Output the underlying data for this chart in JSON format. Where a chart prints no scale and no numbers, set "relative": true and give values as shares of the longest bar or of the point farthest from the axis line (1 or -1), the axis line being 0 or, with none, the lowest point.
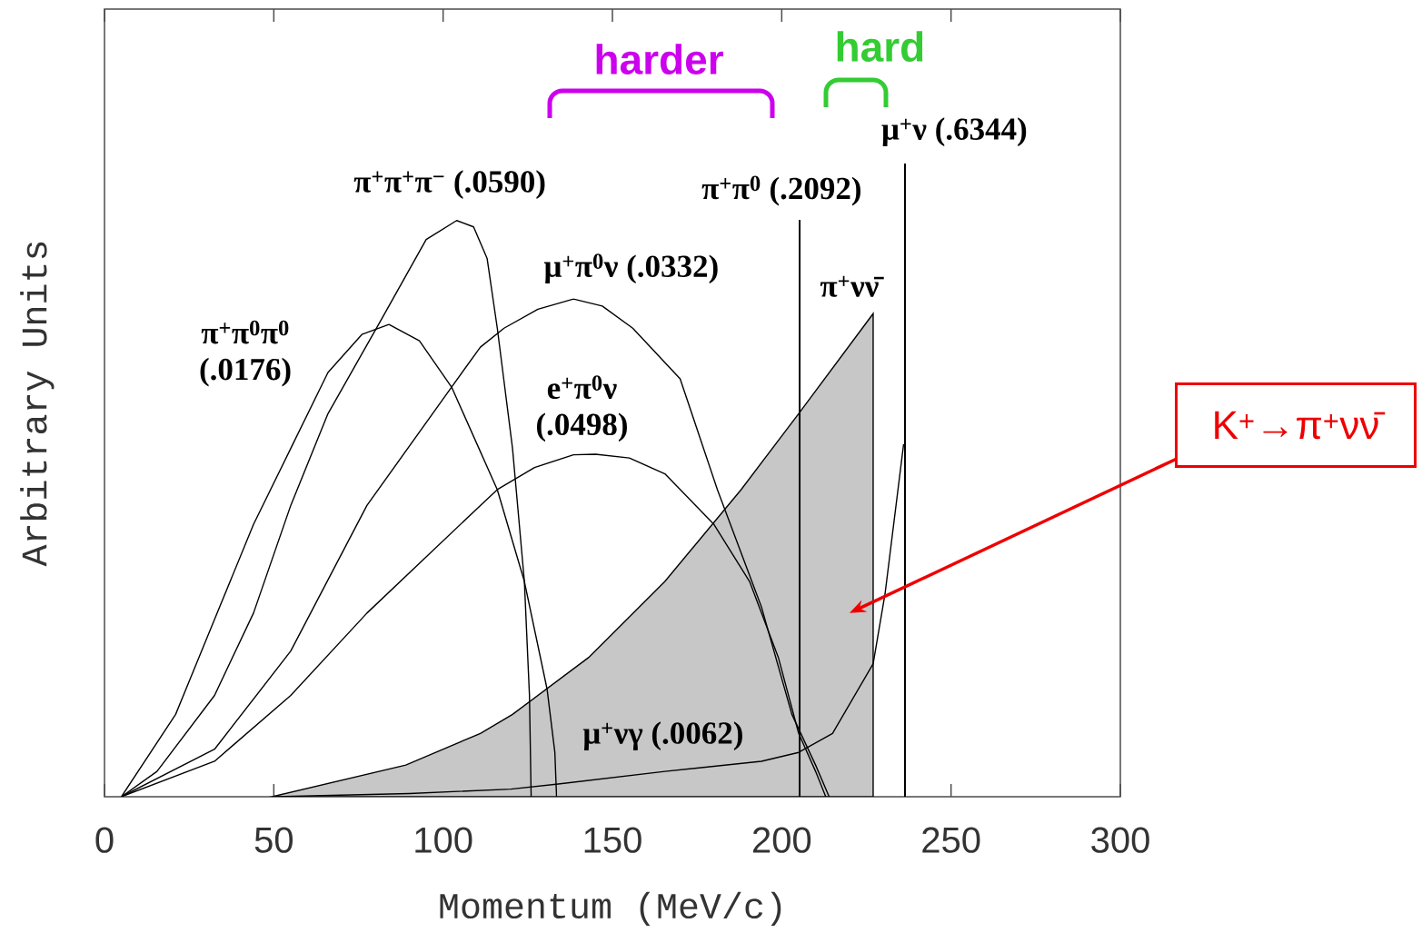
{
  "chart_data": {
    "type": "line",
    "xlabel": "Momentum (MeV/c)",
    "ylabel": "Arbitrary Units",
    "relative": true,
    "tick_labels": "x",
    "xlim": [
      0,
      300
    ],
    "xticks": [
      0,
      50,
      100,
      150,
      200,
      250,
      300
    ],
    "annotations": [
      "harder",
      "hard",
      "K$^{+}$→π$^{+}$νν̄"
    ],
    "series": [
      {
        "name": "π$^{+}$π$^{+}$π$^{−}$  (.0590)",
        "color": "#000000",
        "x": [
          5,
          15.5,
          32.5,
          44,
          55,
          66,
          82,
          95,
          104,
          109,
          113,
          116,
          120.5,
          124,
          125.5,
          126
        ],
        "values": [
          0,
          0.04,
          0.16,
          0.29,
          0.46,
          0.605,
          0.756,
          0.88,
          0.91,
          0.9,
          0.85,
          0.74,
          0.55,
          0.34,
          0.16,
          0
        ]
      },
      {
        "name": "π$^{+}$π$^{0}$π$^{0}$ (.0176)",
        "color": "#000000",
        "x": [
          5,
          21,
          32.5,
          44,
          55,
          66,
          76,
          84,
          93,
          102.5,
          111,
          116,
          124,
          130.7,
          133,
          133.5
        ],
        "values": [
          0,
          0.13,
          0.28,
          0.43,
          0.55,
          0.67,
          0.73,
          0.746,
          0.72,
          0.647,
          0.545,
          0.485,
          0.34,
          0.17,
          0.07,
          0
        ]
      },
      {
        "name": "μ$^{+}$π$^{0}$ν (.0332)",
        "color": "#000000",
        "x": [
          5,
          32.5,
          55,
          77.5,
          102.5,
          111,
          118,
          128,
          138.5,
          147,
          156,
          170,
          181,
          194,
          203,
          210,
          214
        ],
        "values": [
          0,
          0.075,
          0.23,
          0.46,
          0.647,
          0.71,
          0.74,
          0.77,
          0.786,
          0.775,
          0.74,
          0.66,
          0.485,
          0.3,
          0.13,
          0.05,
          0
        ]
      },
      {
        "name": "e$^{+}$π$^{0}$ν (.0498)",
        "color": "#000000",
        "x": [
          5,
          32.5,
          55,
          77.5,
          111,
          116,
          127,
          138.5,
          145,
          155,
          165.5,
          180,
          190.5,
          199,
          205,
          210,
          213
        ],
        "values": [
          0,
          0.056,
          0.16,
          0.29,
          0.46,
          0.485,
          0.52,
          0.54,
          0.541,
          0.535,
          0.51,
          0.43,
          0.34,
          0.22,
          0.1,
          0.04,
          0
        ]
      },
      {
        "name": "μ$^{+}$νγ  (.0062)",
        "color": "#000000",
        "x": [
          50,
          90,
          120,
          134,
          165.5,
          194,
          205,
          215,
          227,
          230.5,
          236
        ],
        "values": [
          0,
          0.005,
          0.012,
          0.02,
          0.04,
          0.056,
          0.07,
          0.1,
          0.21,
          0.32,
          0.557
        ]
      },
      {
        "name": "π$^{+}$νν̄",
        "type": "area",
        "color": "#000000",
        "x": [
          49.5,
          89,
          111,
          120.5,
          143,
          165.5,
          188,
          205,
          227,
          227
        ],
        "values": [
          0,
          0.05,
          0.1,
          0.13,
          0.22,
          0.34,
          0.485,
          0.605,
          0.763,
          0
        ]
      },
      {
        "name": "π$^{+}$π$^{0}$ (.2092)",
        "color": "#000000",
        "x": [
          205.3,
          205.3
        ],
        "values": [
          0,
          0.911
        ]
      },
      {
        "name": "μ$^{+}$ν (.6344)",
        "color": "#000000",
        "x": [
          236.4,
          236.4
        ],
        "values": [
          0,
          1
        ]
      }
    ]
  }
}
